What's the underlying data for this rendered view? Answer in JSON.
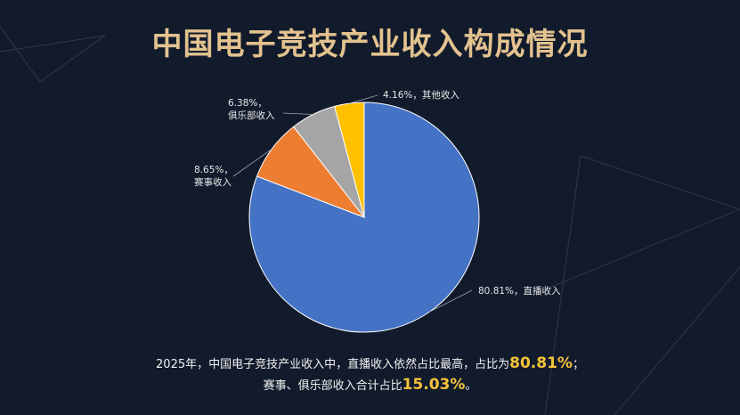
{
  "title": "中国电子竞技产业收入构成情况",
  "colors": {
    "background": "#121b2c",
    "title": "#e3c28f",
    "highlight": "#f5c23a"
  },
  "chart_data": {
    "type": "pie",
    "slices": [
      {
        "label": "80.81%，直播收入",
        "value": 80.81,
        "color": "#4472c4"
      },
      {
        "label": "8.65%，赛事收入",
        "value": 8.65,
        "color": "#ed7d31"
      },
      {
        "label": "6.38%，俱乐部收入",
        "value": 6.38,
        "color": "#a5a5a5"
      },
      {
        "label": "4.16%，其他收入",
        "value": 4.16,
        "color": "#ffc000"
      }
    ]
  },
  "caption": {
    "line1_text": "2025年，中国电子竞技产业收入中，直播收入依然占比最高，占比为",
    "line1_highlight": "80.81%",
    "line1_end": "；",
    "line2_text": "赛事、俱乐部收入合计占比",
    "line2_highlight": "15.03%",
    "line2_end": "。"
  }
}
